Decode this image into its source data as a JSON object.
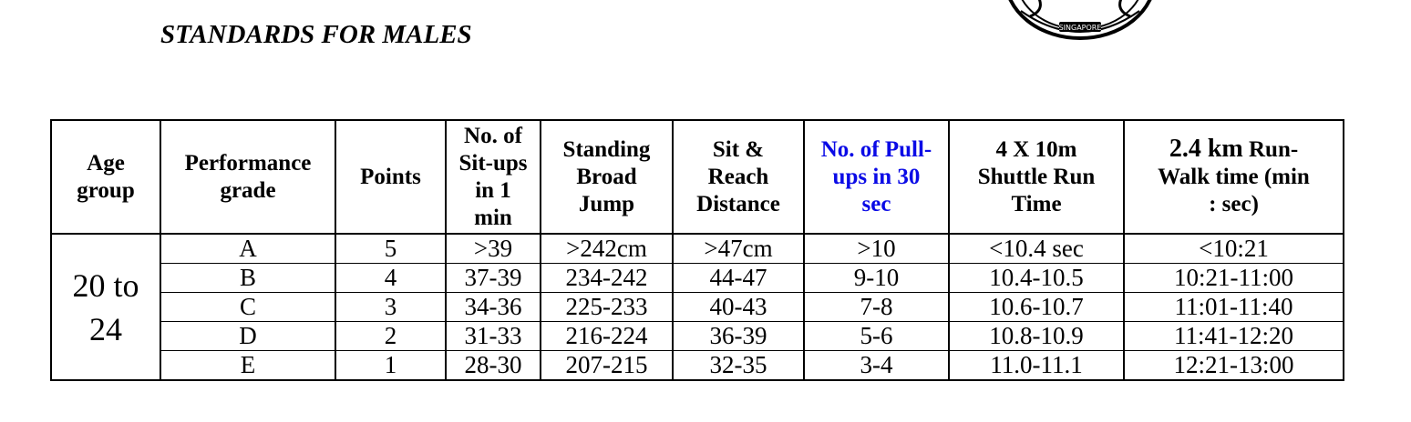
{
  "title": "STANDARDS FOR MALES",
  "emblem": {
    "text": "SINGAPORE"
  },
  "table": {
    "headers": {
      "age_group": "Age group",
      "performance_grade": "Performance grade",
      "points": "Points",
      "situps": "No. of Sit-ups in 1 min",
      "broad_jump": "Standing Broad Jump",
      "sit_reach": "Sit & Reach Distance",
      "pullups": "No. of Pull-ups in 30 sec",
      "shuttle_run": "4 X 10m Shuttle Run Time",
      "run_walk_big": "2.4 km",
      "run_walk_rest": "Run-Walk time (min : sec)"
    },
    "age_group_value": "20 to 24",
    "rows": [
      {
        "grade": "A",
        "points": "5",
        "situps": ">39",
        "broad_jump": ">242cm",
        "sit_reach": ">47cm",
        "pullups": ">10",
        "shuttle": "<10.4 sec",
        "run_walk": "<10:21"
      },
      {
        "grade": "B",
        "points": "4",
        "situps": "37-39",
        "broad_jump": "234-242",
        "sit_reach": "44-47",
        "pullups": "9-10",
        "shuttle": "10.4-10.5",
        "run_walk": "10:21-11:00"
      },
      {
        "grade": "C",
        "points": "3",
        "situps": "34-36",
        "broad_jump": "225-233",
        "sit_reach": "40-43",
        "pullups": "7-8",
        "shuttle": "10.6-10.7",
        "run_walk": "11:01-11:40"
      },
      {
        "grade": "D",
        "points": "2",
        "situps": "31-33",
        "broad_jump": "216-224",
        "sit_reach": "36-39",
        "pullups": "5-6",
        "shuttle": "10.8-10.9",
        "run_walk": "11:41-12:20"
      },
      {
        "grade": "E",
        "points": "1",
        "situps": "28-30",
        "broad_jump": "207-215",
        "sit_reach": "32-35",
        "pullups": "3-4",
        "shuttle": "11.0-11.1",
        "run_walk": "12:21-13:00"
      }
    ]
  }
}
